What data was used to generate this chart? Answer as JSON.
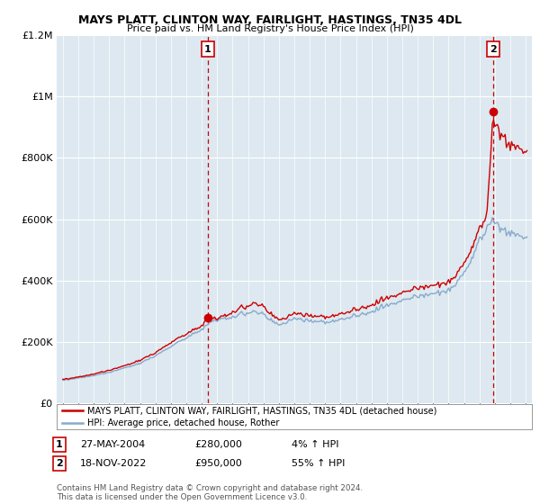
{
  "title": "MAYS PLATT, CLINTON WAY, FAIRLIGHT, HASTINGS, TN35 4DL",
  "subtitle": "Price paid vs. HM Land Registry's House Price Index (HPI)",
  "legend_line1": "MAYS PLATT, CLINTON WAY, FAIRLIGHT, HASTINGS, TN35 4DL (detached house)",
  "legend_line2": "HPI: Average price, detached house, Rother",
  "sale1_date": "27-MAY-2004",
  "sale1_price": 280000,
  "sale1_pct": "4%",
  "sale2_date": "18-NOV-2022",
  "sale2_price": 950000,
  "sale2_pct": "55%",
  "footer": "Contains HM Land Registry data © Crown copyright and database right 2024.\nThis data is licensed under the Open Government Licence v3.0.",
  "ylim": [
    0,
    1200000
  ],
  "yticks": [
    0,
    200000,
    400000,
    600000,
    800000,
    1000000,
    1200000
  ],
  "sale1_color": "#cc0000",
  "sale2_color": "#cc0000",
  "hpi_color": "#88aacc",
  "price_color": "#cc0000",
  "vline_color": "#cc0000",
  "plot_bg": "#dde8f0",
  "xmin": 1994.6,
  "xmax": 2025.4,
  "sale1_x": 2004.38,
  "sale2_x": 2022.88
}
